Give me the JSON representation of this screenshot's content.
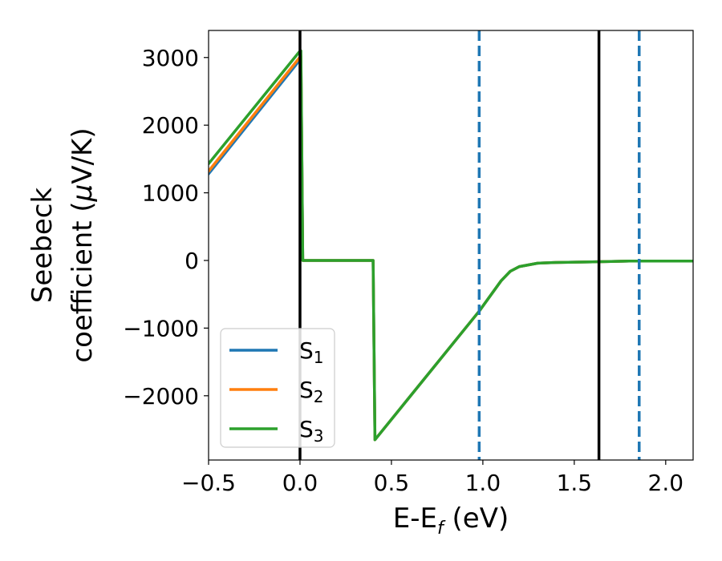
{
  "chart_data": {
    "type": "line",
    "xlabel_main": "E-E",
    "xlabel_sub": "f",
    "xlabel_unit": " (eV)",
    "ylabel_line1": "Seebeck",
    "ylabel_line2": "coefficient  (",
    "ylabel_mu": "μ",
    "ylabel_unit": "V/K)",
    "xlim": [
      -0.5,
      2.15
    ],
    "ylim": [
      -2950,
      3400
    ],
    "xticks": [
      -0.5,
      0.0,
      0.5,
      1.0,
      1.5,
      2.0
    ],
    "xtick_labels": [
      "−0.5",
      "0.0",
      "0.5",
      "1.0",
      "1.5",
      "2.0"
    ],
    "yticks": [
      -2000,
      -1000,
      0,
      1000,
      2000,
      3000
    ],
    "ytick_labels": [
      "−2000",
      "−1000",
      "0",
      "1000",
      "2000",
      "3000"
    ],
    "vlines": [
      {
        "x": 0.0,
        "style": "solid",
        "color": "#000000"
      },
      {
        "x": 0.98,
        "style": "dashed",
        "color": "#1f77b4"
      },
      {
        "x": 1.635,
        "style": "solid",
        "color": "#000000"
      },
      {
        "x": 1.855,
        "style": "dashed",
        "color": "#1f77b4"
      }
    ],
    "legend_position": "lower-left",
    "series": [
      {
        "name": "S",
        "sub": "1",
        "color": "#1f77b4",
        "x": [
          -0.5,
          -0.005,
          0.005,
          0.015,
          0.4,
          0.41,
          0.98,
          1.1,
          1.15,
          1.2,
          1.3,
          1.4,
          1.5,
          1.6,
          1.7,
          1.8,
          1.9,
          2.0,
          2.15
        ],
        "y": [
          1280,
          2950,
          2980,
          0,
          0,
          -2650,
          -750,
          -300,
          -160,
          -90,
          -40,
          -30,
          -25,
          -20,
          -15,
          -10,
          -10,
          -10,
          -10
        ]
      },
      {
        "name": "S",
        "sub": "2",
        "color": "#ff7f0e",
        "x": [
          -0.5,
          -0.005,
          0.005,
          0.015,
          0.4,
          0.41,
          0.98,
          1.1,
          1.15,
          1.2,
          1.3,
          1.4,
          1.5,
          1.6,
          1.7,
          1.8,
          1.9,
          2.0,
          2.15
        ],
        "y": [
          1320,
          2990,
          3020,
          0,
          0,
          -2650,
          -750,
          -300,
          -160,
          -90,
          -40,
          -30,
          -25,
          -20,
          -15,
          -10,
          -10,
          -10,
          -10
        ]
      },
      {
        "name": "S",
        "sub": "3",
        "color": "#2ca02c",
        "x": [
          -0.5,
          -0.005,
          0.005,
          0.015,
          0.4,
          0.41,
          0.98,
          1.1,
          1.15,
          1.2,
          1.3,
          1.4,
          1.5,
          1.6,
          1.7,
          1.8,
          1.9,
          2.0,
          2.15
        ],
        "y": [
          1430,
          3080,
          3100,
          0,
          0,
          -2650,
          -750,
          -300,
          -160,
          -90,
          -40,
          -30,
          -25,
          -20,
          -15,
          -10,
          -10,
          -10,
          -10
        ]
      }
    ]
  }
}
